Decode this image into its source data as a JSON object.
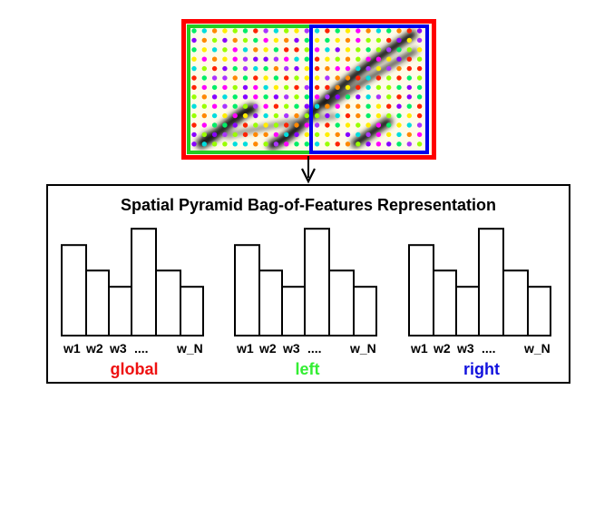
{
  "diagram": {
    "title": "Spatial Pyramid Bag-of-Features Representation",
    "frame_colors": {
      "outer": "#ff0000",
      "left": "#22cc22",
      "right": "#0000ee"
    },
    "dot_palette": [
      "#ff2200",
      "#ff8800",
      "#ffee00",
      "#99ff00",
      "#00ee66",
      "#00dddd",
      "#ff00ff",
      "#aa33ff",
      "#8800ff"
    ],
    "histogram_heights": [
      0.78,
      0.56,
      0.42,
      0.92,
      0.56,
      0.42
    ],
    "histograms": [
      {
        "label": "global",
        "color": "#ee1111",
        "words": [
          "w1",
          "w2",
          "w3",
          "....",
          "w_N"
        ]
      },
      {
        "label": "left",
        "color": "#33ee33",
        "words": [
          "w1",
          "w2",
          "w3",
          "....",
          "w_N"
        ]
      },
      {
        "label": "right",
        "color": "#1111dd",
        "words": [
          "w1",
          "w2",
          "w3",
          "....",
          "w_N"
        ]
      }
    ]
  }
}
